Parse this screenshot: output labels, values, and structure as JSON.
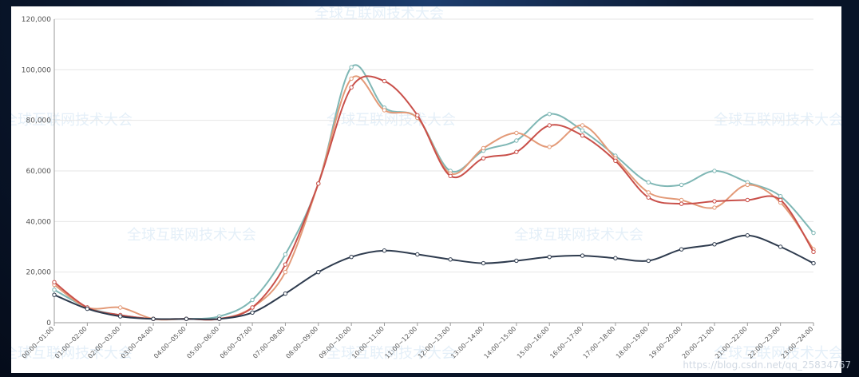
{
  "watermark": {
    "text": "全球互联网技术大会"
  },
  "credit": "https://blog.csdn.net/qq_25834767",
  "chart_data": {
    "type": "line",
    "categories": [
      "00:00~01:00",
      "01:00~02:00",
      "02:00~03:00",
      "03:00~04:00",
      "04:00~05:00",
      "05:00~06:00",
      "06:00~07:00",
      "07:00~08:00",
      "08:00~09:00",
      "09:00~10:00",
      "10:00~11:00",
      "11:00~12:00",
      "12:00~13:00",
      "13:00~14:00",
      "14:00~15:00",
      "15:00~16:00",
      "16:00~17:00",
      "17:00~18:00",
      "18:00~19:00",
      "19:00~20:00",
      "20:00~21:00",
      "21:00~22:00",
      "22:00~23:00",
      "23:00~24:00"
    ],
    "ylim": [
      0,
      120000
    ],
    "yticks": [
      "0",
      "20,000",
      "40,000",
      "60,000",
      "80,000",
      "100,000",
      "120,000"
    ],
    "yticks_values": [
      0,
      20000,
      40000,
      60000,
      80000,
      100000,
      120000
    ],
    "grid": true,
    "series": [
      {
        "color": "#7fb7b5",
        "values": [
          13000,
          6000,
          3000,
          1500,
          1500,
          2500,
          9000,
          27000,
          55000,
          101000,
          85000,
          81000,
          60000,
          68000,
          72000,
          82500,
          76000,
          66000,
          55500,
          54500,
          60000,
          55500,
          50000,
          35500
        ]
      },
      {
        "color": "#e39a78",
        "values": [
          15000,
          6000,
          6000,
          1500,
          1500,
          1500,
          6000,
          20000,
          55000,
          96500,
          84000,
          81000,
          59000,
          69000,
          75000,
          69500,
          78000,
          65000,
          51500,
          48500,
          45500,
          54500,
          47500,
          29000
        ]
      },
      {
        "color": "#c9504a",
        "values": [
          16000,
          6000,
          3000,
          1500,
          1500,
          1500,
          6000,
          23000,
          55000,
          93000,
          95500,
          82000,
          58000,
          65000,
          67500,
          78000,
          74000,
          64000,
          49500,
          47000,
          48000,
          48500,
          48500,
          28000
        ]
      },
      {
        "color": "#2e3b4e",
        "values": [
          11000,
          5500,
          2500,
          1500,
          1500,
          1500,
          4000,
          11500,
          20000,
          26000,
          28500,
          27000,
          25000,
          23500,
          24500,
          26000,
          26500,
          25500,
          24500,
          29000,
          31000,
          34500,
          30000,
          23500
        ]
      }
    ]
  }
}
